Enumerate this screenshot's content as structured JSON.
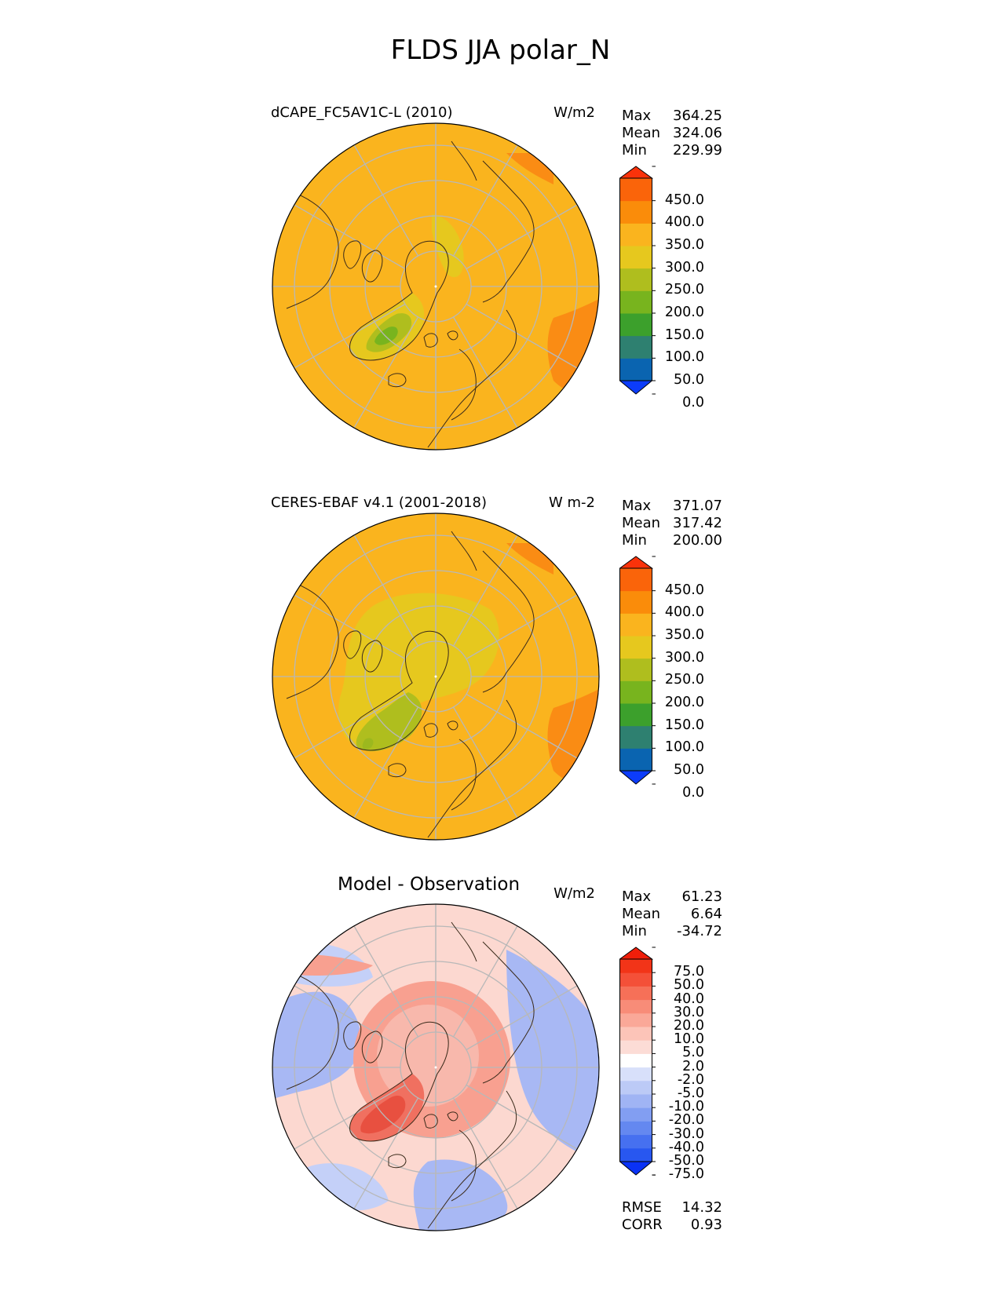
{
  "title": "FLDS JJA polar_N",
  "panels": [
    {
      "title": "dCAPE_FC5AV1C-L (2010)",
      "units": "W/m2",
      "stats": [
        {
          "label": "Max",
          "value": "364.25"
        },
        {
          "label": "Mean",
          "value": "324.06"
        },
        {
          "label": "Min",
          "value": "229.99"
        }
      ],
      "ticks": [
        "450.0",
        "400.0",
        "350.0",
        "300.0",
        "250.0",
        "200.0",
        "150.0",
        "100.0",
        "50.0",
        "0.0"
      ],
      "colors": [
        "#0c3cfa",
        "#0a64b0",
        "#2e8070",
        "#3ca02c",
        "#78b41e",
        "#afbe1e",
        "#e6c81e",
        "#fab41e",
        "#fa8c0a",
        "#fa640a",
        "#fa320a"
      ],
      "map": {
        "ocean": "#fab41e",
        "edge": "#fa8c14",
        "low": "#e6c81e",
        "greenland": "#afbe1e",
        "core": "#78b41e"
      }
    },
    {
      "title": "CERES-EBAF v4.1 (2001-2018)",
      "units": "W m-2",
      "stats": [
        {
          "label": "Max",
          "value": "371.07"
        },
        {
          "label": "Mean",
          "value": "317.42"
        },
        {
          "label": "Min",
          "value": "200.00"
        }
      ],
      "ticks": [
        "450.0",
        "400.0",
        "350.0",
        "300.0",
        "250.0",
        "200.0",
        "150.0",
        "100.0",
        "50.0",
        "0.0"
      ],
      "colors": [
        "#0c3cfa",
        "#0a64b0",
        "#2e8070",
        "#3ca02c",
        "#78b41e",
        "#afbe1e",
        "#e6c81e",
        "#fab41e",
        "#fa8c0a",
        "#fa640a",
        "#fa320a"
      ],
      "map": {
        "ocean": "#fab41e",
        "edge": "#fa8c14",
        "low": "#e6c81e",
        "greenland": "#afbe1e",
        "core": "#9cb81e"
      }
    },
    {
      "title": "Model - Observation",
      "units": "W/m2",
      "stats": [
        {
          "label": "Max",
          "value": "61.23"
        },
        {
          "label": "Mean",
          "value": "6.64"
        },
        {
          "label": "Min",
          "value": "-34.72"
        }
      ],
      "ticks": [
        "75.0",
        "50.0",
        "40.0",
        "30.0",
        "20.0",
        "10.0",
        "5.0",
        "2.0",
        "-2.0",
        "-5.0",
        "-10.0",
        "-20.0",
        "-30.0",
        "-40.0",
        "-50.0",
        "-75.0"
      ],
      "colors": [
        "#0a32f5",
        "#2857f0",
        "#4670f0",
        "#6488f0",
        "#829ef2",
        "#a0b4f4",
        "#bccaf6",
        "#d8e0fa",
        "#ffffff",
        "#fcdcd6",
        "#fcc4b8",
        "#faa898",
        "#f88c78",
        "#f67058",
        "#f45038",
        "#f23418",
        "#f01e0a"
      ],
      "map": {
        "ocean": "#fcd8d0",
        "edge": "#f8b8ac",
        "low": "#f8a090",
        "greenland": "#f07060",
        "core": "#e85040",
        "blue": "#a8b8f4",
        "blue2": "#c4d0f8"
      },
      "extra_stats": [
        {
          "label": "RMSE",
          "value": "14.32"
        },
        {
          "label": "CORR",
          "value": "0.93"
        }
      ]
    }
  ]
}
